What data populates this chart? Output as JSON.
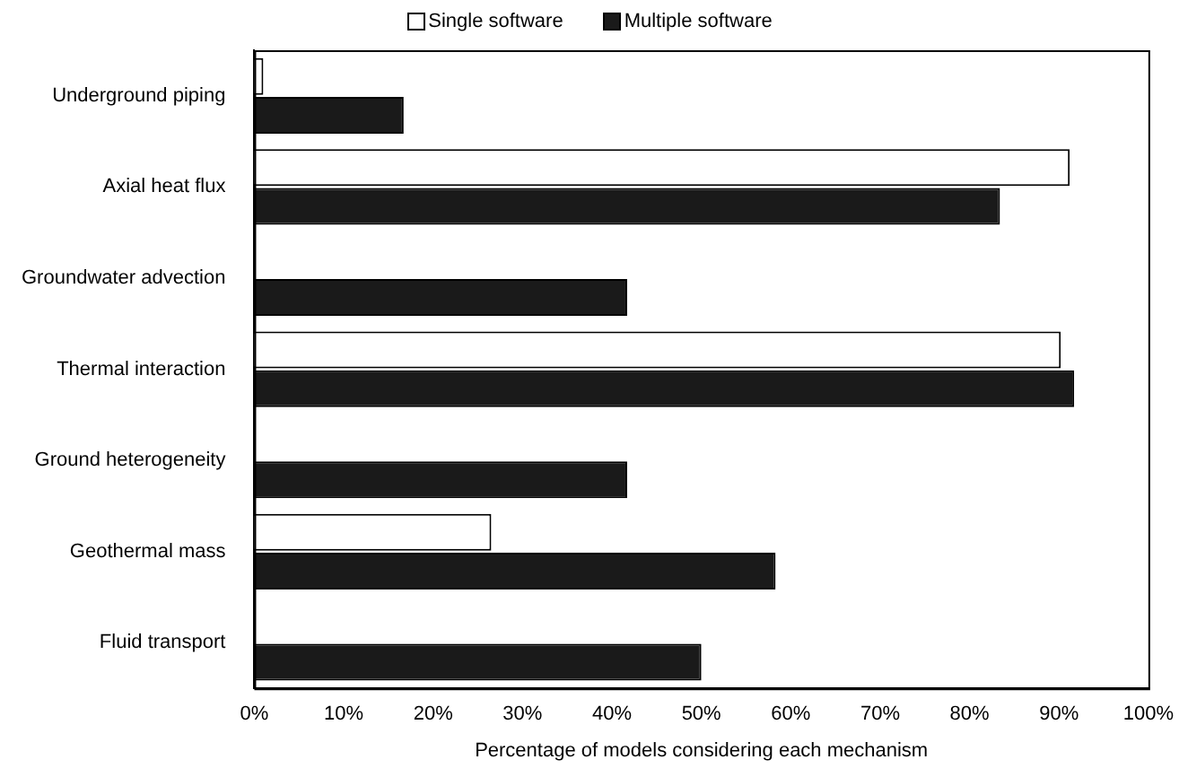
{
  "chart_data": {
    "type": "bar",
    "orientation": "horizontal",
    "xlabel": "Percentage of models considering each mechanism",
    "categories": [
      "Underground piping",
      "Axial heat flux",
      "Groundwater advection",
      "Thermal interaction",
      "Ground heterogeneity",
      "Geothermal mass",
      "Fluid transport"
    ],
    "series": [
      {
        "name": "Single software",
        "color": "#ffffff",
        "values": [
          1,
          91.2,
          0,
          90.2,
          0,
          26.5,
          0
        ]
      },
      {
        "name": "Multiple software",
        "color": "#1a1a1a",
        "values": [
          16.7,
          83.4,
          41.7,
          91.7,
          41.7,
          58.3,
          50
        ]
      }
    ],
    "xlim": [
      0,
      100
    ],
    "xticks": [
      {
        "value": 0,
        "label": "0%"
      },
      {
        "value": 10,
        "label": "10%"
      },
      {
        "value": 20,
        "label": "20%"
      },
      {
        "value": 30,
        "label": "30%"
      },
      {
        "value": 40,
        "label": "40%"
      },
      {
        "value": 50,
        "label": "50%"
      },
      {
        "value": 60,
        "label": "60%"
      },
      {
        "value": 70,
        "label": "70%"
      },
      {
        "value": 80,
        "label": "80%"
      },
      {
        "value": 90,
        "label": "90%"
      },
      {
        "value": 100,
        "label": "100%"
      }
    ],
    "grid": false,
    "legend": "top"
  }
}
